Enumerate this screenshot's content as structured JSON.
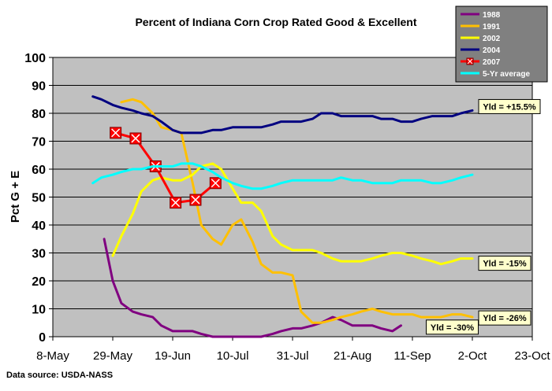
{
  "chart_data": {
    "type": "line",
    "title": "Percent of Indiana Corn Crop Rated Good & Excellent",
    "xlabel": "",
    "ylabel": "Pct G + E",
    "source": "Data source: USDA-NASS",
    "xlim": [
      "2000-05-08",
      "2000-10-23"
    ],
    "ylim": [
      0,
      100
    ],
    "grid": true,
    "x_ticks": [
      "8-May",
      "29-May",
      "19-Jun",
      "10-Jul",
      "31-Jul",
      "21-Aug",
      "11-Sep",
      "2-Oct",
      "23-Oct"
    ],
    "y_ticks": [
      "0",
      "10",
      "20",
      "30",
      "40",
      "50",
      "60",
      "70",
      "80",
      "90",
      "100"
    ],
    "legend_position": "top-right",
    "series": [
      {
        "name": "1988",
        "color": "#800080",
        "marker": "none",
        "x": [
          "2000-05-26",
          "2000-05-29",
          "2000-06-01",
          "2000-06-05",
          "2000-06-08",
          "2000-06-12",
          "2000-06-15",
          "2000-06-19",
          "2000-06-22",
          "2000-06-26",
          "2000-06-29",
          "2000-07-03",
          "2000-07-06",
          "2000-07-10",
          "2000-07-13",
          "2000-07-17",
          "2000-07-20",
          "2000-07-24",
          "2000-07-27",
          "2000-07-31",
          "2000-08-03",
          "2000-08-07",
          "2000-08-10",
          "2000-08-14",
          "2000-08-17",
          "2000-08-21",
          "2000-08-24",
          "2000-08-28",
          "2000-08-31",
          "2000-09-04",
          "2000-09-07"
        ],
        "y": [
          35,
          20,
          12,
          9,
          8,
          7,
          4,
          2,
          2,
          2,
          1,
          0,
          0,
          0,
          0,
          0,
          0,
          1,
          2,
          3,
          3,
          4,
          5,
          7,
          6,
          4,
          4,
          4,
          3,
          2,
          4
        ]
      },
      {
        "name": "1991",
        "color": "#FFC000",
        "marker": "none",
        "x": [
          "2000-06-01",
          "2000-06-05",
          "2000-06-08",
          "2000-06-12",
          "2000-06-15",
          "2000-06-19",
          "2000-06-22",
          "2000-06-26",
          "2000-06-29",
          "2000-07-03",
          "2000-07-06",
          "2000-07-10",
          "2000-07-13",
          "2000-07-17",
          "2000-07-20",
          "2000-07-24",
          "2000-07-27",
          "2000-07-31",
          "2000-08-03",
          "2000-08-07",
          "2000-08-10",
          "2000-08-14",
          "2000-08-17",
          "2000-08-21",
          "2000-08-24",
          "2000-08-28",
          "2000-08-31",
          "2000-09-04",
          "2000-09-07",
          "2000-09-11",
          "2000-09-14",
          "2000-09-18",
          "2000-09-21",
          "2000-09-25",
          "2000-09-28",
          "2000-10-02"
        ],
        "y": [
          84,
          85,
          84,
          80,
          75,
          74,
          73,
          55,
          40,
          35,
          33,
          40,
          42,
          34,
          26,
          23,
          23,
          22,
          9,
          5,
          5,
          6,
          7,
          8,
          9,
          10,
          9,
          8,
          8,
          8,
          7,
          7,
          7,
          8,
          8,
          7
        ]
      },
      {
        "name": "2002",
        "color": "#FFFF00",
        "marker": "none",
        "x": [
          "2000-05-29",
          "2000-06-01",
          "2000-06-05",
          "2000-06-08",
          "2000-06-12",
          "2000-06-15",
          "2000-06-19",
          "2000-06-22",
          "2000-06-26",
          "2000-06-29",
          "2000-07-03",
          "2000-07-06",
          "2000-07-10",
          "2000-07-13",
          "2000-07-17",
          "2000-07-20",
          "2000-07-24",
          "2000-07-27",
          "2000-07-31",
          "2000-08-03",
          "2000-08-07",
          "2000-08-10",
          "2000-08-14",
          "2000-08-17",
          "2000-08-21",
          "2000-08-24",
          "2000-08-28",
          "2000-08-31",
          "2000-09-04",
          "2000-09-07",
          "2000-09-11",
          "2000-09-14",
          "2000-09-18",
          "2000-09-21",
          "2000-09-25",
          "2000-09-28",
          "2000-10-02"
        ],
        "y": [
          29,
          36,
          44,
          52,
          56,
          57,
          56,
          56,
          58,
          61,
          62,
          60,
          53,
          48,
          48,
          45,
          36,
          33,
          31,
          31,
          31,
          30,
          28,
          27,
          27,
          27,
          28,
          29,
          30,
          30,
          29,
          28,
          27,
          26,
          27,
          28,
          28
        ]
      },
      {
        "name": "2004",
        "color": "#000080",
        "marker": "none",
        "x": [
          "2000-05-22",
          "2000-05-25",
          "2000-05-29",
          "2000-06-01",
          "2000-06-05",
          "2000-06-08",
          "2000-06-12",
          "2000-06-15",
          "2000-06-19",
          "2000-06-22",
          "2000-06-26",
          "2000-06-29",
          "2000-07-03",
          "2000-07-06",
          "2000-07-10",
          "2000-07-13",
          "2000-07-17",
          "2000-07-20",
          "2000-07-24",
          "2000-07-27",
          "2000-07-31",
          "2000-08-03",
          "2000-08-07",
          "2000-08-10",
          "2000-08-14",
          "2000-08-17",
          "2000-08-21",
          "2000-08-24",
          "2000-08-28",
          "2000-08-31",
          "2000-09-04",
          "2000-09-07",
          "2000-09-11",
          "2000-09-14",
          "2000-09-18",
          "2000-09-21",
          "2000-09-25",
          "2000-09-28",
          "2000-10-02"
        ],
        "y": [
          86,
          85,
          83,
          82,
          81,
          80,
          79,
          77,
          74,
          73,
          73,
          73,
          74,
          74,
          75,
          75,
          75,
          75,
          76,
          77,
          77,
          77,
          78,
          80,
          80,
          79,
          79,
          79,
          79,
          78,
          78,
          77,
          77,
          78,
          79,
          79,
          79,
          80,
          81
        ]
      },
      {
        "name": "2007",
        "color": "#FF0000",
        "marker": "box-x",
        "x": [
          "2000-05-30",
          "2000-06-06",
          "2000-06-13",
          "2000-06-20",
          "2000-06-27",
          "2000-07-04"
        ],
        "y": [
          73,
          71,
          61,
          48,
          49,
          55
        ]
      },
      {
        "name": "5-Yr average",
        "color": "#00FFFF",
        "marker": "none",
        "x": [
          "2000-05-22",
          "2000-05-25",
          "2000-05-29",
          "2000-06-01",
          "2000-06-05",
          "2000-06-08",
          "2000-06-12",
          "2000-06-15",
          "2000-06-19",
          "2000-06-22",
          "2000-06-26",
          "2000-06-29",
          "2000-07-03",
          "2000-07-06",
          "2000-07-10",
          "2000-07-13",
          "2000-07-17",
          "2000-07-20",
          "2000-07-24",
          "2000-07-27",
          "2000-07-31",
          "2000-08-03",
          "2000-08-07",
          "2000-08-10",
          "2000-08-14",
          "2000-08-17",
          "2000-08-21",
          "2000-08-24",
          "2000-08-28",
          "2000-08-31",
          "2000-09-04",
          "2000-09-07",
          "2000-09-11",
          "2000-09-14",
          "2000-09-18",
          "2000-09-21",
          "2000-09-25",
          "2000-09-28",
          "2000-10-02"
        ],
        "y": [
          55,
          57,
          58,
          59,
          60,
          60,
          61,
          61,
          61,
          62,
          62,
          61,
          59,
          57,
          55,
          54,
          53,
          53,
          54,
          55,
          56,
          56,
          56,
          56,
          56,
          57,
          56,
          56,
          55,
          55,
          55,
          56,
          56,
          56,
          55,
          55,
          56,
          57,
          58
        ]
      }
    ],
    "annotations": [
      {
        "text": "Yld = +15.5%",
        "series": "2004"
      },
      {
        "text": "Yld = -15%",
        "series": "2002"
      },
      {
        "text": "Yld = -26%",
        "series": "1991"
      },
      {
        "text": "Yld = -30%",
        "series": "1988"
      }
    ]
  },
  "colors": {
    "plot_background": "#C0C0C0",
    "annotation_fill": "#FFFFCC",
    "gridline": "#000000"
  }
}
